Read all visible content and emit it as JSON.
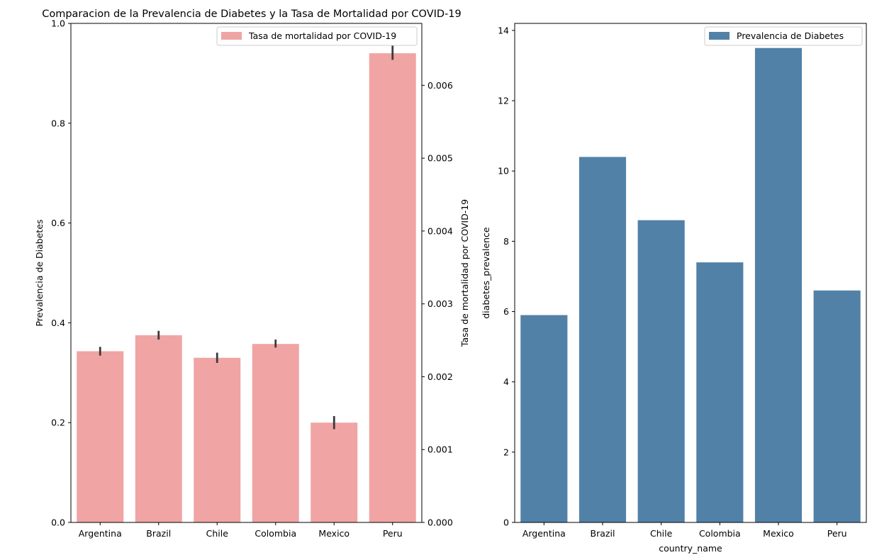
{
  "chart_data": [
    {
      "type": "bar",
      "title": "Comparacion de la Prevalencia de Diabetes y la Tasa de Mortalidad por COVID-19",
      "xlabel": "",
      "ylabel": "Prevalencia de Diabetes",
      "ylim": [
        0,
        1.0
      ],
      "yticks": [
        "0.0",
        "0.2",
        "0.4",
        "0.6",
        "0.8",
        "1.0"
      ],
      "y2label": "Tasa de mortalidad por COVID-19",
      "y2lim": [
        0,
        0.00685
      ],
      "y2ticks": [
        "0.000",
        "0.001",
        "0.002",
        "0.003",
        "0.004",
        "0.005",
        "0.006"
      ],
      "categories": [
        "Argentina",
        "Brazil",
        "Chile",
        "Colombia",
        "Mexico",
        "Peru"
      ],
      "series": [
        {
          "name": "Tasa de mortalidad por COVID-19",
          "axis": "right",
          "color": "#f0a4a4",
          "values": [
            0.00235,
            0.00257,
            0.00226,
            0.00245,
            0.00137,
            0.00644
          ],
          "error_low": [
            0.00229,
            0.00251,
            0.00219,
            0.0024,
            0.00128,
            0.00635
          ],
          "error_high": [
            0.00241,
            0.00263,
            0.00233,
            0.00251,
            0.00146,
            0.00655
          ]
        }
      ],
      "legend": "top-right",
      "grid": false
    },
    {
      "type": "bar",
      "title": "",
      "xlabel": "country_name",
      "ylabel": "diabetes_prevalence",
      "ylim": [
        0,
        14.2
      ],
      "yticks": [
        "0",
        "2",
        "4",
        "6",
        "8",
        "10",
        "12",
        "14"
      ],
      "categories": [
        "Argentina",
        "Brazil",
        "Chile",
        "Colombia",
        "Mexico",
        "Peru"
      ],
      "series": [
        {
          "name": "Prevalencia de Diabetes",
          "color": "#5281a7",
          "values": [
            5.9,
            10.4,
            8.6,
            7.4,
            13.5,
            6.6
          ]
        }
      ],
      "legend": "top-right",
      "grid": false
    }
  ]
}
